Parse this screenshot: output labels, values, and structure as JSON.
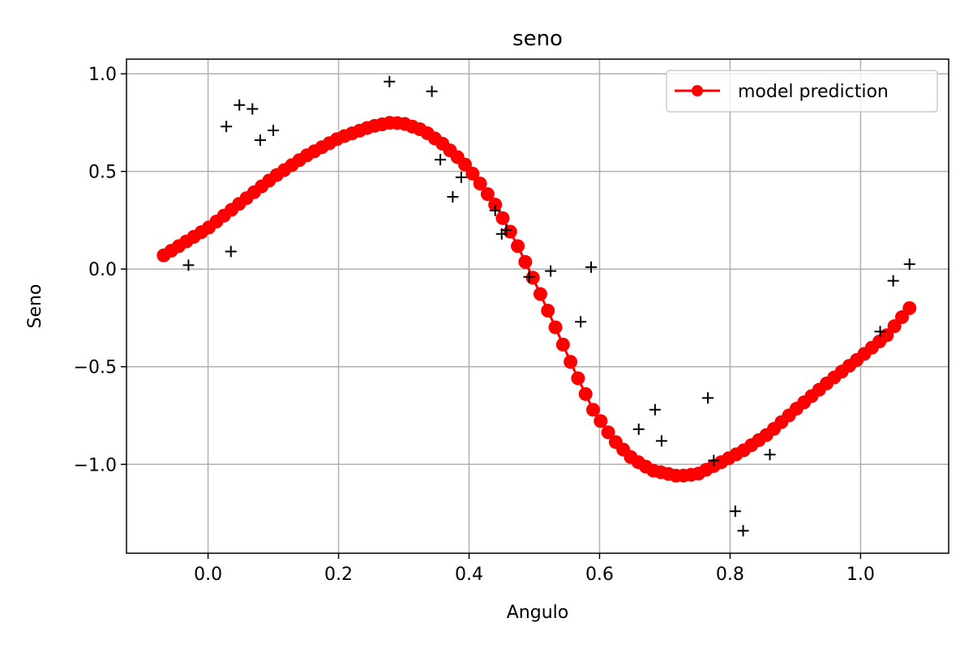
{
  "chart_data": {
    "type": "scatter",
    "title": "seno",
    "xlabel": "Angulo",
    "ylabel": "Seno",
    "xlim": [
      -0.125,
      1.135
    ],
    "ylim": [
      -1.455,
      1.075
    ],
    "xticks": [
      0.0,
      0.2,
      0.4,
      0.6,
      0.8,
      1.0
    ],
    "xtick_labels": [
      "0.0",
      "0.2",
      "0.4",
      "0.6",
      "0.8",
      "1.0"
    ],
    "yticks": [
      1.0,
      0.5,
      0.0,
      -0.5,
      -1.0
    ],
    "ytick_labels": [
      "1.0",
      "0.5",
      "0.0",
      "−0.5",
      "−1.0"
    ],
    "grid": true,
    "legend_position": "top-right",
    "colors": {
      "prediction": "#ff0000",
      "observations": "#000000",
      "grid": "#b0b0b0"
    },
    "series": [
      {
        "name": "model prediction",
        "kind": "line-markers",
        "x_start": -0.068,
        "x_end": 1.075,
        "points_count": 100,
        "control_points": [
          [
            -0.068,
            0.07
          ],
          [
            0.0,
            0.21
          ],
          [
            0.05,
            0.34
          ],
          [
            0.1,
            0.47
          ],
          [
            0.15,
            0.58
          ],
          [
            0.2,
            0.67
          ],
          [
            0.25,
            0.73
          ],
          [
            0.28,
            0.75
          ],
          [
            0.3,
            0.745
          ],
          [
            0.33,
            0.71
          ],
          [
            0.36,
            0.64
          ],
          [
            0.39,
            0.55
          ],
          [
            0.41,
            0.47
          ],
          [
            0.44,
            0.33
          ],
          [
            0.47,
            0.15
          ],
          [
            0.5,
            -0.06
          ],
          [
            0.53,
            -0.28
          ],
          [
            0.56,
            -0.51
          ],
          [
            0.59,
            -0.72
          ],
          [
            0.62,
            -0.87
          ],
          [
            0.65,
            -0.97
          ],
          [
            0.68,
            -1.03
          ],
          [
            0.72,
            -1.06
          ],
          [
            0.75,
            -1.05
          ],
          [
            0.78,
            -1.0
          ],
          [
            0.82,
            -0.93
          ],
          [
            0.86,
            -0.84
          ],
          [
            0.9,
            -0.72
          ],
          [
            0.95,
            -0.58
          ],
          [
            1.0,
            -0.45
          ],
          [
            1.04,
            -0.34
          ],
          [
            1.075,
            -0.2
          ]
        ]
      },
      {
        "name": "",
        "kind": "plus-markers",
        "points": [
          [
            -0.03,
            0.02
          ],
          [
            0.028,
            0.73
          ],
          [
            0.035,
            0.09
          ],
          [
            0.048,
            0.84
          ],
          [
            0.068,
            0.82
          ],
          [
            0.08,
            0.66
          ],
          [
            0.1,
            0.71
          ],
          [
            0.278,
            0.96
          ],
          [
            0.343,
            0.91
          ],
          [
            0.356,
            0.56
          ],
          [
            0.375,
            0.37
          ],
          [
            0.388,
            0.47
          ],
          [
            0.44,
            0.3
          ],
          [
            0.45,
            0.18
          ],
          [
            0.457,
            0.2
          ],
          [
            0.492,
            -0.04
          ],
          [
            0.525,
            -0.01
          ],
          [
            0.571,
            -0.27
          ],
          [
            0.587,
            0.01
          ],
          [
            0.66,
            -0.82
          ],
          [
            0.685,
            -0.72
          ],
          [
            0.695,
            -0.88
          ],
          [
            0.766,
            -0.66
          ],
          [
            0.775,
            -0.98
          ],
          [
            0.808,
            -1.24
          ],
          [
            0.82,
            -1.34
          ],
          [
            0.861,
            -0.95
          ],
          [
            1.03,
            -0.32
          ],
          [
            1.05,
            -0.06
          ],
          [
            1.075,
            0.025
          ]
        ]
      }
    ]
  }
}
